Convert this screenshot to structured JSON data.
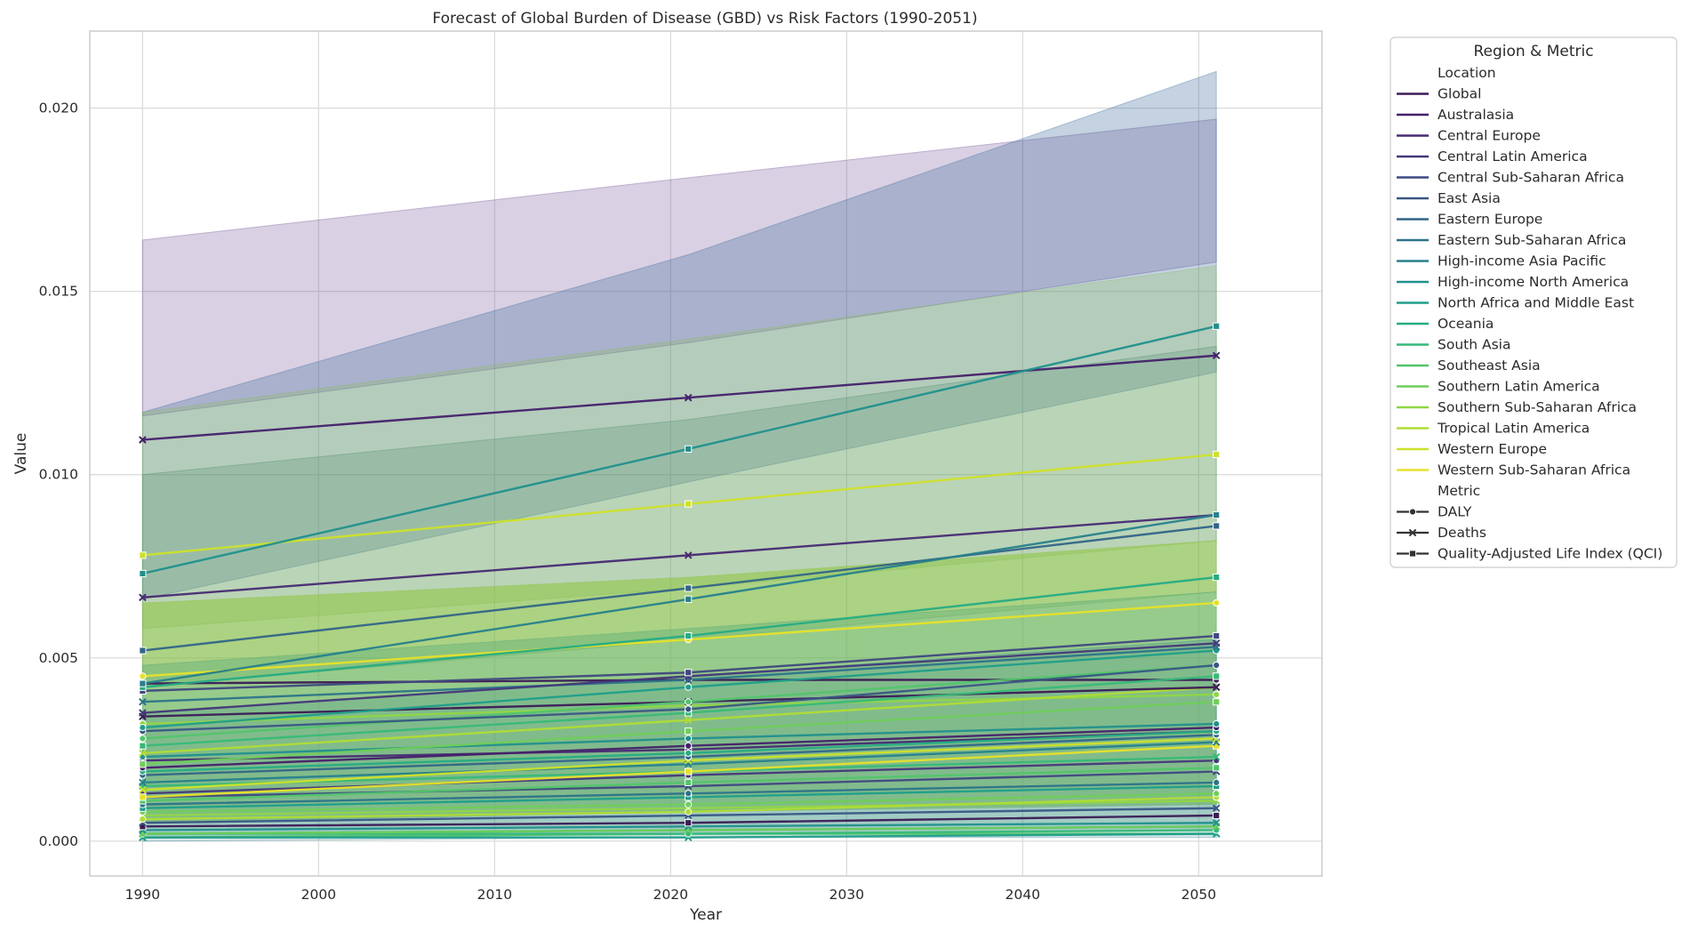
{
  "chart_data": {
    "type": "line",
    "title": "Forecast of Global Burden of Disease (GBD) vs Risk Factors (1990-2051)",
    "xlabel": "Year",
    "ylabel": "Value",
    "xlim": [
      1987,
      2057
    ],
    "ylim": [
      -0.00095,
      0.0221
    ],
    "xticks": [
      1990,
      2000,
      2010,
      2020,
      2030,
      2040,
      2050
    ],
    "yticks": [
      0.0,
      0.005,
      0.01,
      0.015,
      0.02
    ],
    "ytick_labels": [
      "0.000",
      "0.005",
      "0.010",
      "0.015",
      "0.020"
    ],
    "x": [
      1990,
      2021,
      2051
    ],
    "grid": true,
    "legend_position": "outside-right",
    "legend_title": "Region & Metric",
    "legend_location_header": "Location",
    "legend_metric_header": "Metric",
    "locations": [
      {
        "name": "Global",
        "color": "#3b1b55"
      },
      {
        "name": "Australasia",
        "color": "#44206a"
      },
      {
        "name": "Central Europe",
        "color": "#472a73"
      },
      {
        "name": "Central Latin America",
        "color": "#45387a"
      },
      {
        "name": "Central Sub-Saharan Africa",
        "color": "#3f4880"
      },
      {
        "name": "East Asia",
        "color": "#395684"
      },
      {
        "name": "Eastern Europe",
        "color": "#326587"
      },
      {
        "name": "Eastern Sub-Saharan Africa",
        "color": "#2c7389"
      },
      {
        "name": "High-income Asia Pacific",
        "color": "#26818b"
      },
      {
        "name": "High-income North America",
        "color": "#21908c"
      },
      {
        "name": "North Africa and Middle East",
        "color": "#1e9e89"
      },
      {
        "name": "Oceania",
        "color": "#25ac83"
      },
      {
        "name": "South Asia",
        "color": "#37b978"
      },
      {
        "name": "Southeast Asia",
        "color": "#51c46b"
      },
      {
        "name": "Southern Latin America",
        "color": "#6fce5a"
      },
      {
        "name": "Southern Sub-Saharan Africa",
        "color": "#8fd646"
      },
      {
        "name": "Tropical Latin America",
        "color": "#b0dc35"
      },
      {
        "name": "Western Europe",
        "color": "#cde12a"
      },
      {
        "name": "Western Sub-Saharan Africa",
        "color": "#e6e22a"
      }
    ],
    "metrics": [
      {
        "name": "DALY",
        "marker": "circle"
      },
      {
        "name": "Deaths",
        "marker": "x"
      },
      {
        "name": "Quality-Adjusted Life Index (QCI)",
        "marker": "square"
      }
    ],
    "bands": [
      {
        "color": "#6b4b92",
        "opacity": 0.26,
        "upper": [
          0.0164,
          0.0181,
          0.0197
        ],
        "lower": [
          0.0116,
          0.0136,
          0.0158
        ]
      },
      {
        "color": "#3a6a9a",
        "opacity": 0.3,
        "upper": [
          0.0117,
          0.016,
          0.021
        ],
        "lower": [
          0.0066,
          0.0098,
          0.0128
        ]
      },
      {
        "color": "#8bbf5a",
        "opacity": 0.28,
        "upper": [
          0.0117,
          0.0137,
          0.0157
        ],
        "lower": [
          0.0058,
          0.0069,
          0.0082
        ]
      },
      {
        "color": "#4a8a6a",
        "opacity": 0.25,
        "upper": [
          0.01,
          0.0115,
          0.0135
        ],
        "lower": [
          0.0042,
          0.0055,
          0.0068
        ]
      },
      {
        "color": "#8cc43c",
        "opacity": 0.55,
        "upper": [
          0.0065,
          0.0072,
          0.0082
        ],
        "lower": [
          0.0005,
          0.0008,
          0.001
        ]
      },
      {
        "color": "#4aa57a",
        "opacity": 0.35,
        "upper": [
          0.0048,
          0.0058,
          0.0068
        ],
        "lower": [
          0.0001,
          0.0002,
          0.0003
        ]
      },
      {
        "color": "#2f7f8f",
        "opacity": 0.2,
        "upper": [
          0.0035,
          0.0045,
          0.0055
        ],
        "lower": [
          0.0,
          0.0001,
          0.0001
        ]
      }
    ],
    "series": [
      {
        "loc": 1,
        "metric": 1,
        "values": [
          0.01095,
          0.0121,
          0.01325
        ]
      },
      {
        "loc": 9,
        "metric": 2,
        "values": [
          0.0073,
          0.0107,
          0.01405
        ]
      },
      {
        "loc": 17,
        "metric": 2,
        "values": [
          0.0078,
          0.0092,
          0.01055
        ]
      },
      {
        "loc": 2,
        "metric": 1,
        "values": [
          0.00665,
          0.0078,
          0.0089
        ]
      },
      {
        "loc": 6,
        "metric": 2,
        "values": [
          0.0052,
          0.0069,
          0.0086
        ]
      },
      {
        "loc": 8,
        "metric": 2,
        "values": [
          0.0043,
          0.0066,
          0.0089
        ]
      },
      {
        "loc": 11,
        "metric": 2,
        "values": [
          0.0042,
          0.0056,
          0.0072
        ]
      },
      {
        "loc": 18,
        "metric": 0,
        "values": [
          0.0045,
          0.0055,
          0.0065
        ]
      },
      {
        "loc": 0,
        "metric": 0,
        "values": [
          0.0043,
          0.0044,
          0.0044
        ]
      },
      {
        "loc": 3,
        "metric": 1,
        "values": [
          0.0035,
          0.0045,
          0.0054
        ]
      },
      {
        "loc": 4,
        "metric": 2,
        "values": [
          0.0041,
          0.0046,
          0.0056
        ]
      },
      {
        "loc": 7,
        "metric": 1,
        "values": [
          0.0038,
          0.0044,
          0.0053
        ]
      },
      {
        "loc": 10,
        "metric": 0,
        "values": [
          0.0031,
          0.0042,
          0.0052
        ]
      },
      {
        "loc": 12,
        "metric": 2,
        "values": [
          0.0026,
          0.0035,
          0.0045
        ]
      },
      {
        "loc": 13,
        "metric": 0,
        "values": [
          0.0028,
          0.0038,
          0.0048
        ]
      },
      {
        "loc": 15,
        "metric": 0,
        "values": [
          0.0032,
          0.0037,
          0.004
        ]
      },
      {
        "loc": 16,
        "metric": 1,
        "values": [
          0.0024,
          0.0033,
          0.0042
        ]
      },
      {
        "loc": 14,
        "metric": 2,
        "values": [
          0.0021,
          0.003,
          0.0038
        ]
      },
      {
        "loc": 5,
        "metric": 0,
        "values": [
          0.003,
          0.0036,
          0.0048
        ]
      },
      {
        "loc": 0,
        "metric": 1,
        "values": [
          0.0034,
          0.0038,
          0.0042
        ]
      },
      {
        "loc": 1,
        "metric": 0,
        "values": [
          0.002,
          0.0026,
          0.0031
        ]
      },
      {
        "loc": 2,
        "metric": 2,
        "values": [
          0.0022,
          0.0025,
          0.003
        ]
      },
      {
        "loc": 6,
        "metric": 0,
        "values": [
          0.0018,
          0.0023,
          0.0029
        ]
      },
      {
        "loc": 8,
        "metric": 1,
        "values": [
          0.0016,
          0.0021,
          0.0027
        ]
      },
      {
        "loc": 9,
        "metric": 0,
        "values": [
          0.0023,
          0.0028,
          0.0032
        ]
      },
      {
        "loc": 17,
        "metric": 1,
        "values": [
          0.0014,
          0.0022,
          0.0028
        ]
      },
      {
        "loc": 18,
        "metric": 2,
        "values": [
          0.0012,
          0.0019,
          0.0026
        ]
      },
      {
        "loc": 11,
        "metric": 0,
        "values": [
          0.0019,
          0.0024,
          0.003
        ]
      },
      {
        "loc": 12,
        "metric": 1,
        "values": [
          0.0015,
          0.0019,
          0.0023
        ]
      },
      {
        "loc": 13,
        "metric": 2,
        "values": [
          0.0011,
          0.0016,
          0.002
        ]
      },
      {
        "loc": 3,
        "metric": 0,
        "values": [
          0.0013,
          0.0018,
          0.0022
        ]
      },
      {
        "loc": 4,
        "metric": 1,
        "values": [
          0.0012,
          0.0015,
          0.0019
        ]
      },
      {
        "loc": 7,
        "metric": 0,
        "values": [
          0.001,
          0.0013,
          0.0016
        ]
      },
      {
        "loc": 10,
        "metric": 2,
        "values": [
          0.0009,
          0.0012,
          0.0015
        ]
      },
      {
        "loc": 14,
        "metric": 0,
        "values": [
          0.0008,
          0.001,
          0.0013
        ]
      },
      {
        "loc": 15,
        "metric": 1,
        "values": [
          0.0007,
          0.0009,
          0.0011
        ]
      },
      {
        "loc": 16,
        "metric": 0,
        "values": [
          0.0006,
          0.0008,
          0.0012
        ]
      },
      {
        "loc": 5,
        "metric": 1,
        "values": [
          0.0005,
          0.0007,
          0.0009
        ]
      },
      {
        "loc": 0,
        "metric": 2,
        "values": [
          0.0004,
          0.0005,
          0.0007
        ]
      },
      {
        "loc": 9,
        "metric": 1,
        "values": [
          0.0003,
          0.0004,
          0.0005
        ]
      },
      {
        "loc": 11,
        "metric": 1,
        "values": [
          0.0002,
          0.0003,
          0.0004
        ]
      },
      {
        "loc": 12,
        "metric": 0,
        "values": [
          0.0002,
          0.0002,
          0.0003
        ]
      },
      {
        "loc": 13,
        "metric": 1,
        "values": [
          0.0001,
          0.0002,
          0.0002
        ]
      },
      {
        "loc": 10,
        "metric": 1,
        "values": [
          0.0001,
          0.0001,
          0.0002
        ]
      },
      {
        "loc": 14,
        "metric": 1,
        "values": [
          0.0002,
          0.0003,
          0.0004
        ]
      }
    ]
  }
}
